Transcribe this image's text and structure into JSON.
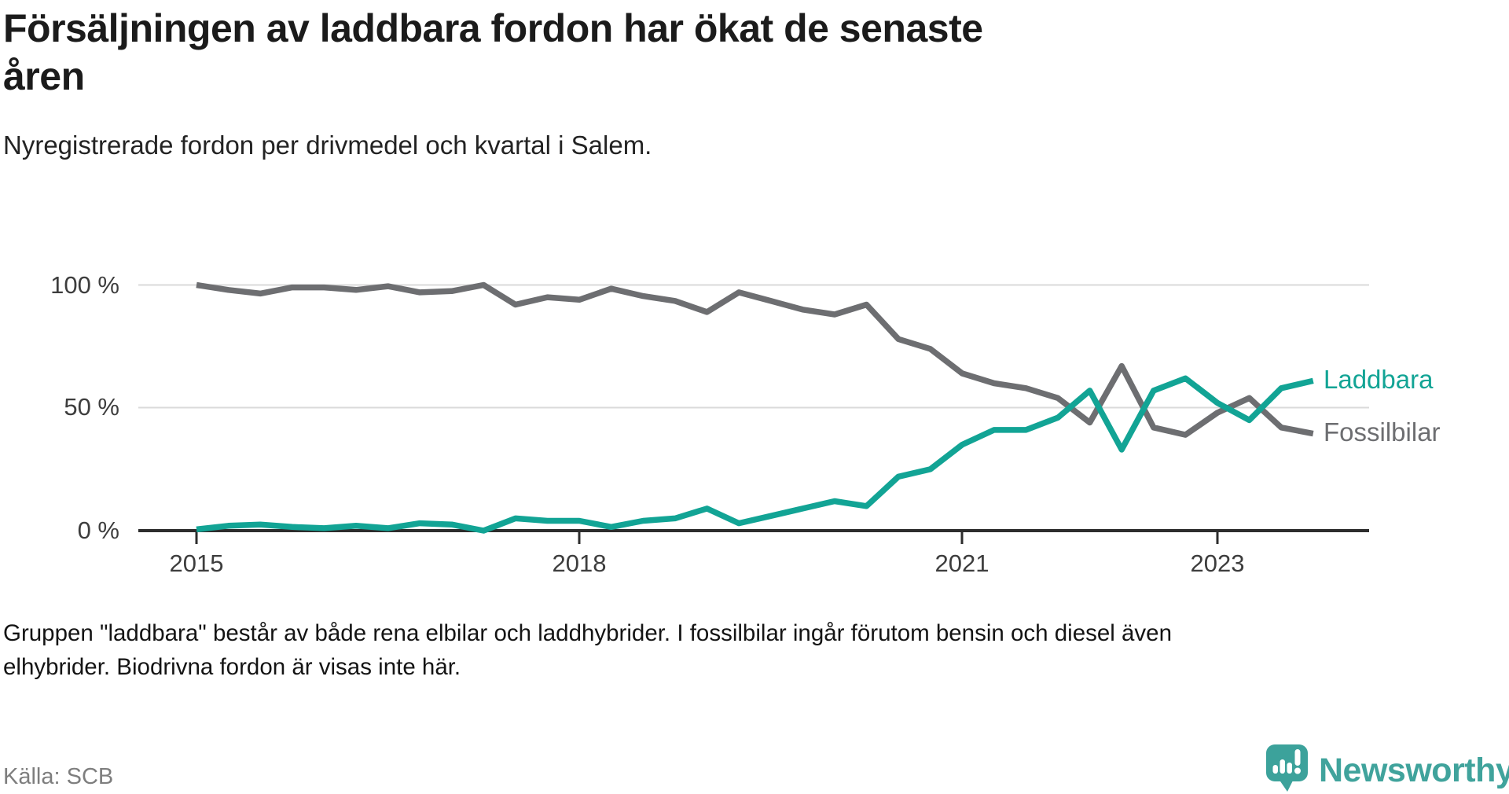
{
  "header": {
    "title": "Försäljningen av laddbara fordon har ökat de senaste\nåren",
    "subtitle": "Nyregistrerade fordon per drivmedel och kvartal i Salem."
  },
  "chart_data": {
    "type": "line",
    "unit": "%",
    "title": "Nyregistrerade fordon per drivmedel och kvartal i Salem",
    "ylim": [
      0,
      100
    ],
    "grid": "horizontal",
    "legend_position": "right-end",
    "categories": [
      "2015-Q1",
      "2015-Q2",
      "2015-Q3",
      "2015-Q4",
      "2016-Q1",
      "2016-Q2",
      "2016-Q3",
      "2016-Q4",
      "2017-Q1",
      "2017-Q2",
      "2017-Q3",
      "2017-Q4",
      "2018-Q1",
      "2018-Q2",
      "2018-Q3",
      "2018-Q4",
      "2019-Q1",
      "2019-Q2",
      "2019-Q3",
      "2019-Q4",
      "2020-Q1",
      "2020-Q2",
      "2020-Q3",
      "2020-Q4",
      "2021-Q1",
      "2021-Q2",
      "2021-Q3",
      "2021-Q4",
      "2022-Q1",
      "2022-Q2",
      "2022-Q3",
      "2022-Q4",
      "2023-Q1",
      "2023-Q2",
      "2023-Q3",
      "2023-Q4"
    ],
    "series": [
      {
        "key": "fossilbilar",
        "name": "Fossilbilar",
        "color": "#6d6e71",
        "values": [
          100,
          98,
          96.5,
          99,
          99,
          98,
          99.5,
          97,
          97.5,
          100,
          92,
          95,
          94,
          98.5,
          95.5,
          93.5,
          89,
          97,
          93.5,
          90,
          88,
          92,
          78,
          74,
          64,
          60,
          58,
          54,
          44,
          67,
          42,
          39,
          48,
          54,
          42,
          39.5
        ]
      },
      {
        "key": "laddbara",
        "name": "Laddbara",
        "color": "#12a495",
        "values": [
          0.5,
          2,
          2.5,
          1.5,
          1,
          2,
          1,
          3,
          2.5,
          0,
          5,
          4,
          4,
          1.5,
          4,
          5,
          9,
          3,
          6,
          9,
          12,
          10,
          22,
          25,
          35,
          41,
          41,
          46,
          57,
          33,
          57,
          62,
          52,
          45,
          58,
          61
        ]
      }
    ],
    "y_ticks": [
      "0 %",
      "50 %",
      "100 %"
    ],
    "x_ticks": [
      "2015",
      "2018",
      "2021",
      "2023"
    ]
  },
  "footer": {
    "note": "Gruppen \"laddbara\" består av både rena elbilar och laddhybrider. I fossilbilar ingår förutom bensin och diesel även\nelhybrider. Biodrivna fordon är visas inte här.",
    "source": "Källa: SCB",
    "brand": "Newsworthy"
  }
}
